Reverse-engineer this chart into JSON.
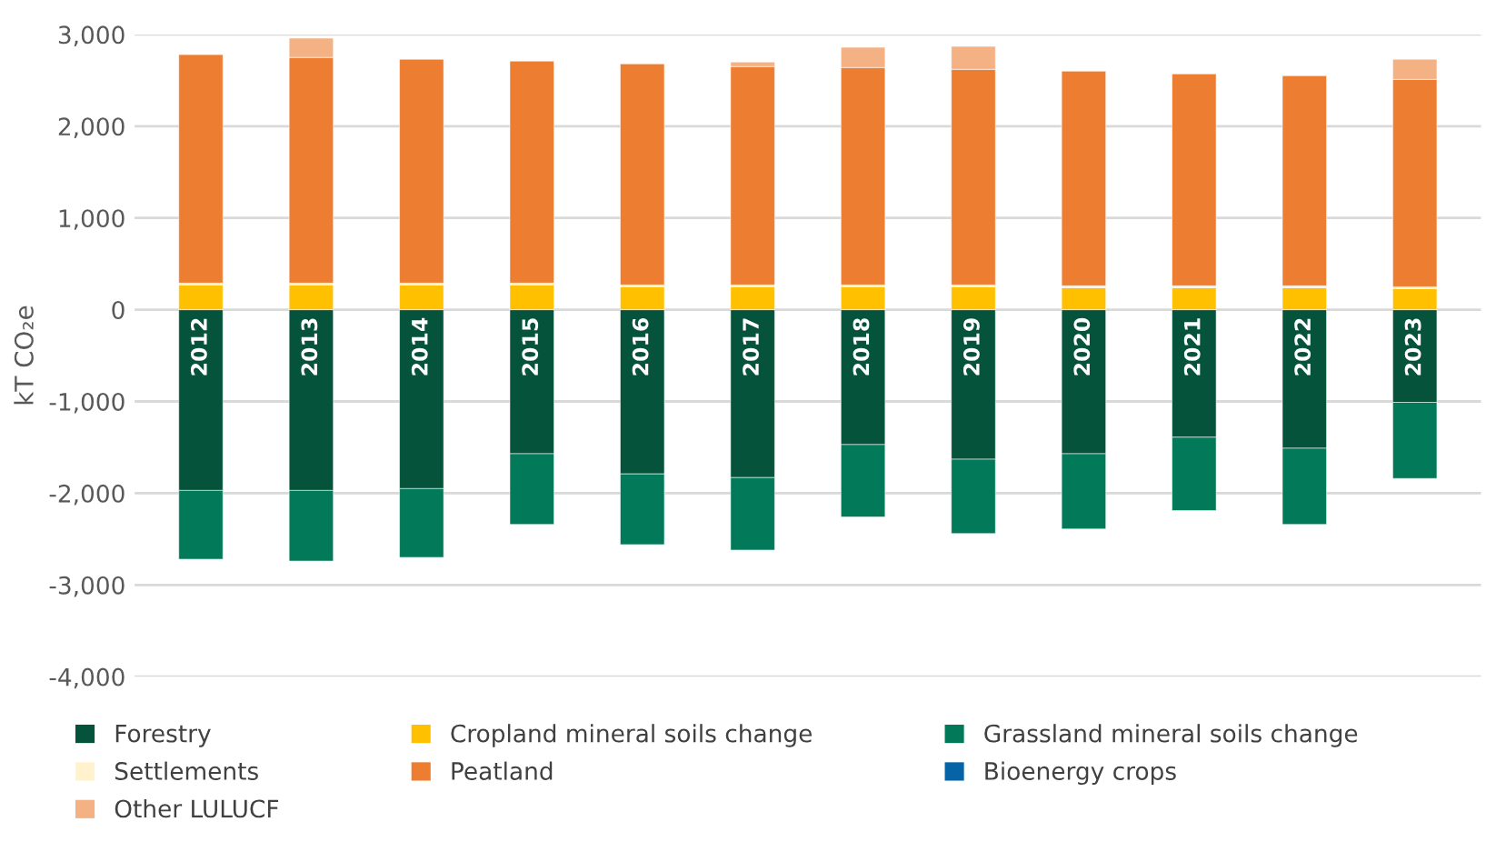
{
  "chart_data": {
    "type": "bar",
    "stacked": true,
    "ylabel": "kT CO₂e",
    "categories": [
      "2012",
      "2013",
      "2014",
      "2015",
      "2016",
      "2017",
      "2018",
      "2019",
      "2020",
      "2021",
      "2022",
      "2023"
    ],
    "series": [
      {
        "name": "Forestry",
        "color": "#04533a",
        "values": [
          -1970,
          -1970,
          -1950,
          -1570,
          -1790,
          -1830,
          -1470,
          -1630,
          -1570,
          -1390,
          -1510,
          -1010
        ]
      },
      {
        "name": "Cropland mineral soils change",
        "color": "#ffc000",
        "values": [
          270,
          270,
          270,
          270,
          250,
          250,
          250,
          250,
          240,
          240,
          240,
          230
        ]
      },
      {
        "name": "Grassland mineral soils change",
        "color": "#027a5a",
        "values": [
          -750,
          -770,
          -750,
          -770,
          -770,
          -790,
          -790,
          -810,
          -820,
          -800,
          -830,
          -830
        ]
      },
      {
        "name": "Settlements",
        "color": "#fff2cc",
        "values": [
          20,
          20,
          20,
          20,
          20,
          20,
          20,
          20,
          20,
          20,
          20,
          20
        ]
      },
      {
        "name": "Peatland",
        "color": "#ed7d31",
        "values": [
          2490,
          2460,
          2440,
          2420,
          2410,
          2380,
          2370,
          2350,
          2340,
          2310,
          2290,
          2260
        ]
      },
      {
        "name": "Bioenergy crops",
        "color": "#0563a6",
        "values": [
          null,
          null,
          null,
          null,
          null,
          null,
          null,
          null,
          null,
          null,
          null,
          null
        ]
      },
      {
        "name": "Other LULUCF",
        "color": "#f4b183",
        "values": [
          null,
          210,
          null,
          null,
          null,
          50,
          220,
          250,
          null,
          null,
          null,
          220
        ]
      }
    ],
    "ylim": [
      -4000,
      3000
    ],
    "yticks": [
      {
        "value": -4000,
        "label": "-4,000"
      },
      {
        "value": -3000,
        "label": "-3,000"
      },
      {
        "value": -2000,
        "label": "-2,000"
      },
      {
        "value": -1000,
        "label": "-1,000"
      },
      0,
      {
        "value": 1000,
        "label": "1,000"
      },
      {
        "value": 2000,
        "label": "2,000"
      },
      {
        "value": 3000,
        "label": "3,000"
      }
    ],
    "grid": "y",
    "legend": "bottom"
  }
}
